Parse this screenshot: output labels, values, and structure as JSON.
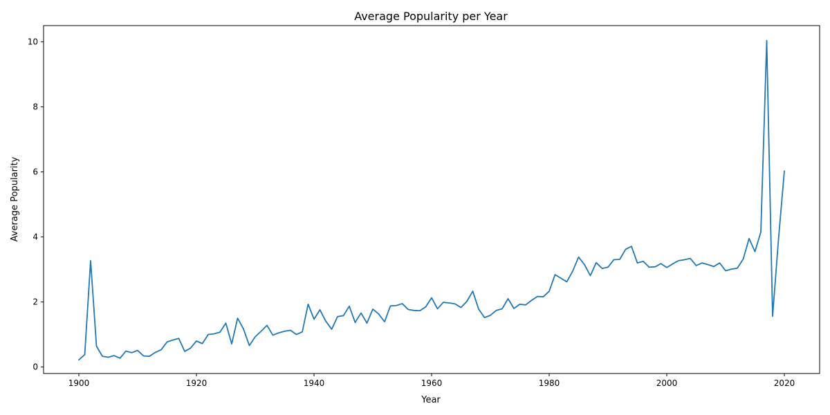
{
  "chart_data": {
    "type": "line",
    "title": "Average Popularity per Year",
    "xlabel": "Year",
    "ylabel": "Average Popularity",
    "xlim": [
      1894,
      2026
    ],
    "ylim": [
      -0.2,
      10.5
    ],
    "xticks": [
      1900,
      1920,
      1940,
      1960,
      1980,
      2000,
      2020
    ],
    "yticks": [
      0,
      2,
      4,
      6,
      8,
      10
    ],
    "grid": false,
    "legend": "none",
    "series": [
      {
        "color": "#1f77b4",
        "x": [
          1900,
          1901,
          1902,
          1903,
          1904,
          1905,
          1906,
          1907,
          1908,
          1909,
          1910,
          1911,
          1912,
          1913,
          1914,
          1915,
          1916,
          1917,
          1918,
          1919,
          1920,
          1921,
          1922,
          1923,
          1924,
          1925,
          1926,
          1927,
          1928,
          1929,
          1930,
          1931,
          1932,
          1933,
          1934,
          1935,
          1936,
          1937,
          1938,
          1939,
          1940,
          1941,
          1942,
          1943,
          1944,
          1945,
          1946,
          1947,
          1948,
          1949,
          1950,
          1951,
          1952,
          1953,
          1954,
          1955,
          1956,
          1957,
          1958,
          1959,
          1960,
          1961,
          1962,
          1963,
          1964,
          1965,
          1966,
          1967,
          1968,
          1969,
          1970,
          1971,
          1972,
          1973,
          1974,
          1975,
          1976,
          1977,
          1978,
          1979,
          1980,
          1981,
          1982,
          1983,
          1984,
          1985,
          1986,
          1987,
          1988,
          1989,
          1990,
          1991,
          1992,
          1993,
          1994,
          1995,
          1996,
          1997,
          1998,
          1999,
          2000,
          2001,
          2002,
          2003,
          2004,
          2005,
          2006,
          2007,
          2008,
          2009,
          2010,
          2011,
          2012,
          2013,
          2014,
          2015,
          2016,
          2017,
          2018,
          2019,
          2020
        ],
        "y": [
          0.22,
          0.38,
          3.27,
          0.64,
          0.33,
          0.3,
          0.35,
          0.27,
          0.49,
          0.44,
          0.51,
          0.34,
          0.33,
          0.45,
          0.53,
          0.77,
          0.83,
          0.88,
          0.48,
          0.58,
          0.8,
          0.72,
          1.0,
          1.02,
          1.07,
          1.35,
          0.71,
          1.5,
          1.17,
          0.66,
          0.93,
          1.1,
          1.28,
          0.98,
          1.05,
          1.1,
          1.13,
          1.0,
          1.08,
          1.93,
          1.47,
          1.76,
          1.41,
          1.16,
          1.55,
          1.58,
          1.87,
          1.37,
          1.66,
          1.35,
          1.78,
          1.63,
          1.39,
          1.88,
          1.89,
          1.95,
          1.77,
          1.74,
          1.73,
          1.85,
          2.13,
          1.79,
          1.99,
          1.97,
          1.94,
          1.83,
          2.02,
          2.33,
          1.78,
          1.52,
          1.59,
          1.74,
          1.79,
          2.1,
          1.8,
          1.93,
          1.91,
          2.05,
          2.17,
          2.16,
          2.33,
          2.84,
          2.73,
          2.62,
          2.95,
          3.38,
          3.15,
          2.81,
          3.21,
          3.03,
          3.07,
          3.3,
          3.31,
          3.62,
          3.71,
          3.2,
          3.25,
          3.07,
          3.08,
          3.18,
          3.06,
          3.17,
          3.27,
          3.3,
          3.34,
          3.12,
          3.2,
          3.15,
          3.09,
          3.2,
          2.96,
          3.01,
          3.04,
          3.32,
          3.95,
          3.55,
          4.15,
          10.04,
          1.56,
          3.92,
          6.03
        ]
      }
    ]
  }
}
